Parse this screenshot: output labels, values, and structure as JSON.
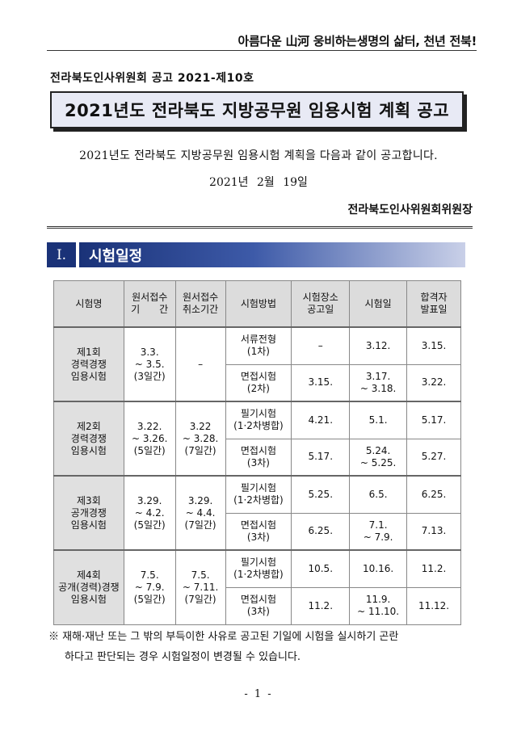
{
  "slogan": "아름다운 山河 웅비하는생명의 삶터, 천년 전북!",
  "notice_number": "전라북도인사위원회 공고 2021-제10호",
  "title": "2021년도 전라북도 지방공무원 임용시험 계획 공고",
  "intro": "2021년도 전라북도 지방공무원 임용시험 계획을 다음과 같이 공고합니다.",
  "date": "2021년 2월 19일",
  "signer": "전라북도인사위원회위원장",
  "section": {
    "number": "Ⅰ.",
    "title": "시험일정"
  },
  "table": {
    "headers": {
      "name": "시험명",
      "apply": [
        "원서접수",
        "기　　간"
      ],
      "cancel": [
        "원서접수",
        "취소기간"
      ],
      "method": "시험방법",
      "venue": [
        "시험장소",
        "공고일"
      ],
      "exam": "시험일",
      "result": [
        "합격자",
        "발표일"
      ]
    },
    "groups": [
      {
        "name": [
          "제1회",
          "경력경쟁",
          "임용시험"
        ],
        "apply": [
          "3.3.",
          "~ 3.5.",
          "(3일간)"
        ],
        "cancel": [
          "–"
        ],
        "rows": [
          {
            "method": [
              "서류전형",
              "(1차)"
            ],
            "venue": "–",
            "exam": [
              "3.12."
            ],
            "result": "3.15."
          },
          {
            "method": [
              "면접시험",
              "(2차)"
            ],
            "venue": "3.15.",
            "exam": [
              "3.17.",
              "~ 3.18."
            ],
            "result": "3.22."
          }
        ]
      },
      {
        "name": [
          "제2회",
          "경력경쟁",
          "임용시험"
        ],
        "apply": [
          "3.22.",
          "~ 3.26.",
          "(5일간)"
        ],
        "cancel": [
          "3.22",
          "~ 3.28.",
          "(7일간)"
        ],
        "rows": [
          {
            "method": [
              "필기시험",
              "(1·2차병합)"
            ],
            "venue": "4.21.",
            "exam": [
              "5.1."
            ],
            "result": "5.17."
          },
          {
            "method": [
              "면접시험",
              "(3차)"
            ],
            "venue": "5.17.",
            "exam": [
              "5.24.",
              "~ 5.25."
            ],
            "result": "5.27."
          }
        ]
      },
      {
        "name": [
          "제3회",
          "공개경쟁",
          "임용시험"
        ],
        "apply": [
          "3.29.",
          "~ 4.2.",
          "(5일간)"
        ],
        "cancel": [
          "3.29.",
          "~ 4.4.",
          "(7일간)"
        ],
        "rows": [
          {
            "method": [
              "필기시험",
              "(1·2차병합)"
            ],
            "venue": "5.25.",
            "exam": [
              "6.5."
            ],
            "result": "6.25."
          },
          {
            "method": [
              "면접시험",
              "(3차)"
            ],
            "venue": "6.25.",
            "exam": [
              "7.1.",
              "~ 7.9."
            ],
            "result": "7.13."
          }
        ]
      },
      {
        "name": [
          "제4회",
          "공개(경력)경쟁",
          "임용시험"
        ],
        "apply": [
          "7.5.",
          "~ 7.9.",
          "(5일간)"
        ],
        "cancel": [
          "7.5.",
          "~ 7.11.",
          "(7일간)"
        ],
        "rows": [
          {
            "method": [
              "필기시험",
              "(1·2차병합)"
            ],
            "venue": "10.5.",
            "exam": [
              "10.16."
            ],
            "result": "11.2."
          },
          {
            "method": [
              "면접시험",
              "(3차)"
            ],
            "venue": "11.2.",
            "exam": [
              "11.9.",
              "~ 11.10."
            ],
            "result": "11.12."
          }
        ]
      }
    ]
  },
  "footnote": [
    "※ 재해·재난 또는 그 밖의 부득이한 사유로 공고된 기일에 시험을 실시하기 곤란",
    "하다고 판단되는 경우 시험일정이 변경될 수 있습니다."
  ],
  "page_number": "- 1 -"
}
